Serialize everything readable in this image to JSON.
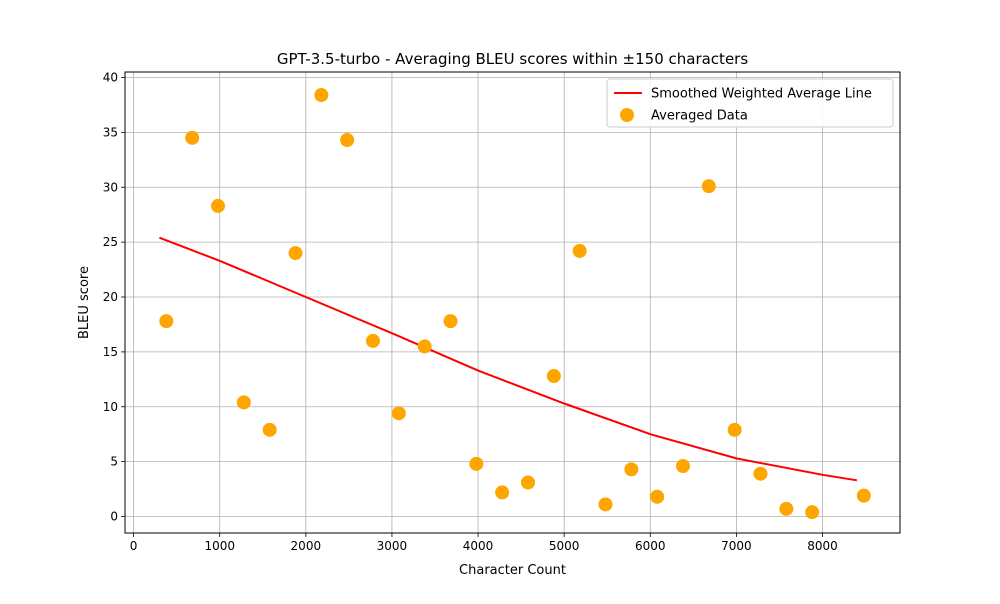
{
  "chart_data": {
    "type": "scatter",
    "title": "GPT-3.5-turbo - Averaging BLEU scores within ±150 characters",
    "xlabel": "Character Count",
    "ylabel": "BLEU score",
    "xlim": [
      -100,
      8900
    ],
    "ylim": [
      -1.5,
      40.5
    ],
    "xticks": [
      0,
      1000,
      2000,
      3000,
      4000,
      5000,
      6000,
      7000,
      8000
    ],
    "yticks": [
      0,
      5,
      10,
      15,
      20,
      25,
      30,
      35,
      40
    ],
    "grid": true,
    "legend_position": "top-right",
    "series": [
      {
        "name": "Smoothed Weighted Average Line",
        "kind": "line",
        "color": "#ff0000",
        "points": [
          [
            300,
            25.4
          ],
          [
            1000,
            23.3
          ],
          [
            2000,
            20.0
          ],
          [
            3000,
            16.7
          ],
          [
            4000,
            13.3
          ],
          [
            5000,
            10.3
          ],
          [
            6000,
            7.5
          ],
          [
            7000,
            5.3
          ],
          [
            8000,
            3.8
          ],
          [
            8400,
            3.3
          ]
        ]
      },
      {
        "name": "Averaged Data",
        "kind": "scatter",
        "color": "#ffa500",
        "points": [
          [
            380,
            17.8
          ],
          [
            680,
            34.5
          ],
          [
            980,
            28.3
          ],
          [
            1280,
            10.4
          ],
          [
            1580,
            7.9
          ],
          [
            1880,
            24.0
          ],
          [
            2180,
            38.4
          ],
          [
            2480,
            34.3
          ],
          [
            2780,
            16.0
          ],
          [
            3080,
            9.4
          ],
          [
            3380,
            15.5
          ],
          [
            3680,
            17.8
          ],
          [
            3980,
            4.8
          ],
          [
            4280,
            2.2
          ],
          [
            4580,
            3.1
          ],
          [
            4880,
            12.8
          ],
          [
            5180,
            24.2
          ],
          [
            5480,
            1.1
          ],
          [
            5780,
            4.3
          ],
          [
            6080,
            1.8
          ],
          [
            6380,
            4.6
          ],
          [
            6680,
            30.1
          ],
          [
            6980,
            7.9
          ],
          [
            7280,
            3.9
          ],
          [
            7580,
            0.7
          ],
          [
            7880,
            0.4
          ],
          [
            8480,
            1.9
          ]
        ]
      }
    ]
  }
}
